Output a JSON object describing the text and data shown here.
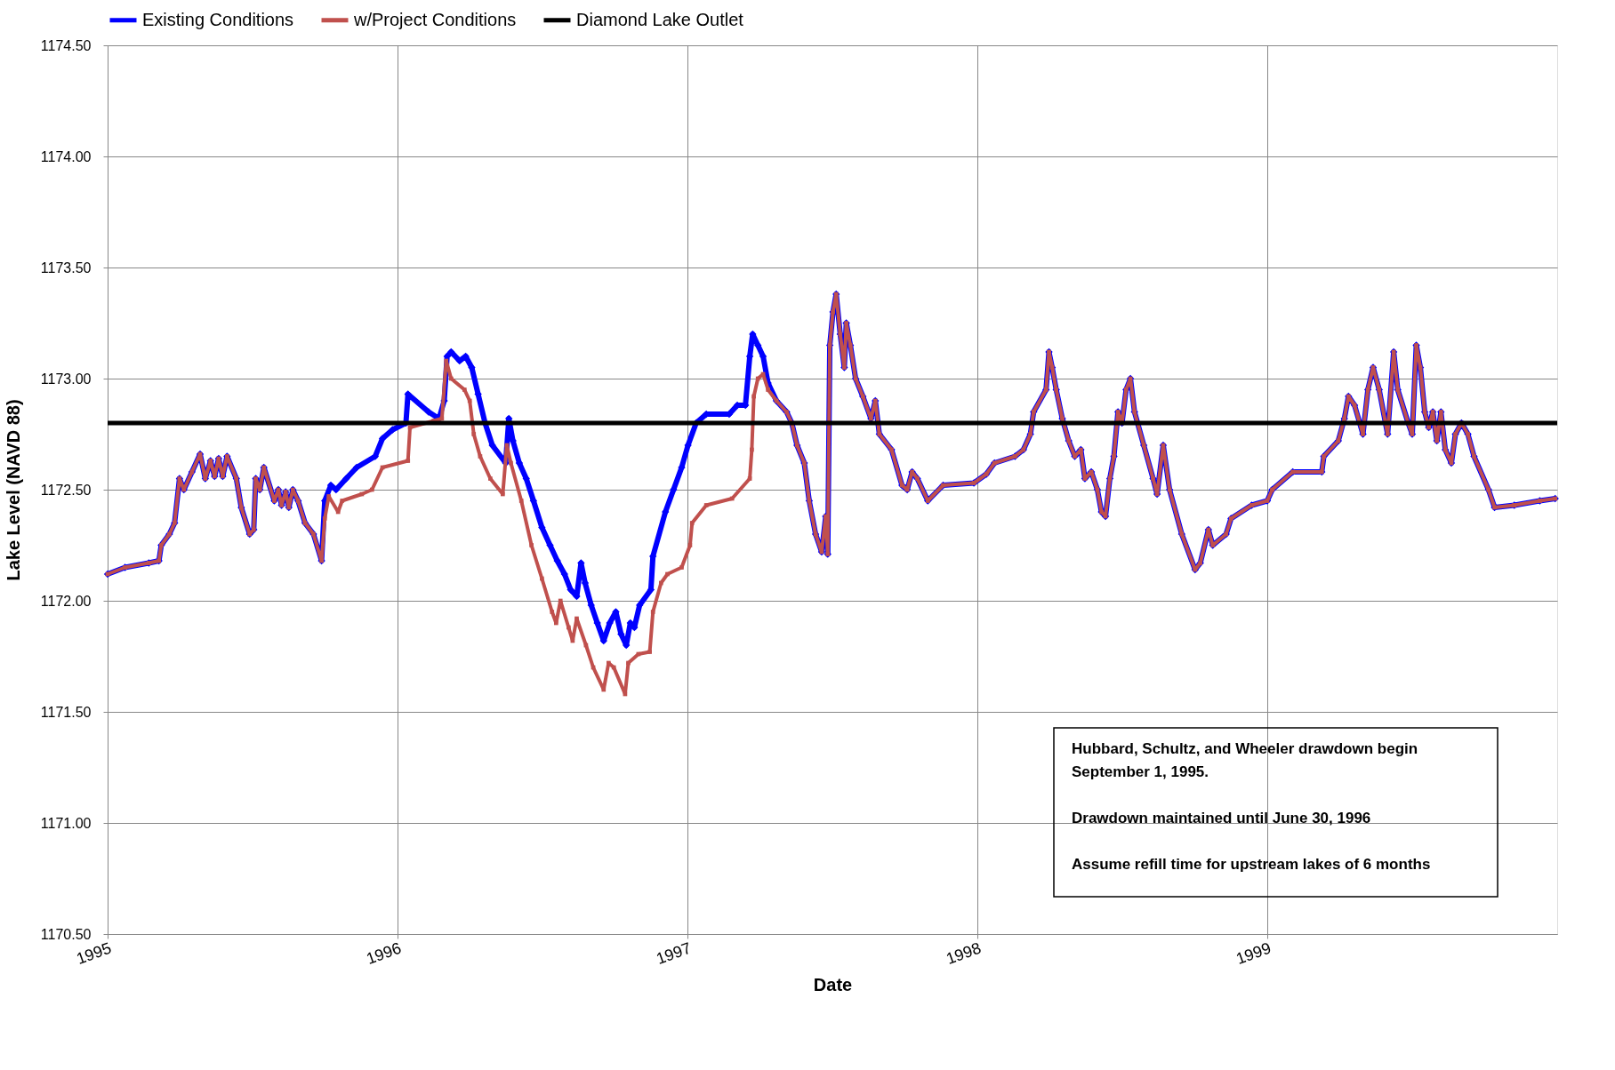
{
  "chart_data": {
    "type": "line",
    "xlabel": "Date",
    "ylabel": "Lake Level (NAVD 88)",
    "xlim": [
      1995,
      2000
    ],
    "xticks": [
      1995,
      1996,
      1997,
      1998,
      1999
    ],
    "ylim": [
      1170.5,
      1174.5
    ],
    "yticks": [
      {
        "value": 1170.5,
        "label": "1170.50"
      },
      {
        "value": 1171,
        "label": "1171.00"
      },
      {
        "value": 1171.5,
        "label": "1171.50"
      },
      {
        "value": 1172,
        "label": "1172.00"
      },
      {
        "value": 1172.5,
        "label": "1172.50"
      },
      {
        "value": 1173,
        "label": "1173.00"
      },
      {
        "value": 1173.5,
        "label": "1173.50"
      },
      {
        "value": 1174,
        "label": "1174.00"
      },
      {
        "value": 1174.5,
        "label": "1174.50"
      }
    ],
    "grid": true,
    "legend": "top",
    "series": [
      {
        "name": "Existing Conditions",
        "color": "#0000ff",
        "marker": "diamond",
        "x": [
          1995.0,
          1995.06,
          1995.142,
          1995.177,
          1995.185,
          1995.213,
          1995.231,
          1995.248,
          1995.263,
          1995.291,
          1995.319,
          1995.337,
          1995.355,
          1995.369,
          1995.383,
          1995.397,
          1995.412,
          1995.444,
          1995.461,
          1995.49,
          1995.504,
          1995.511,
          1995.525,
          1995.539,
          1995.575,
          1995.589,
          1995.6,
          1995.614,
          1995.625,
          1995.639,
          1995.657,
          1995.681,
          1995.71,
          1995.738,
          1995.749,
          1995.77,
          1995.788,
          1995.823,
          1995.859,
          1995.923,
          1995.948,
          1995.983,
          1996.029,
          1996.036,
          1996.107,
          1996.143,
          1996.161,
          1996.171,
          1996.185,
          1996.214,
          1996.235,
          1996.256,
          1996.278,
          1996.302,
          1996.327,
          1996.373,
          1996.384,
          1996.398,
          1996.42,
          1996.444,
          1996.469,
          1996.498,
          1996.526,
          1996.551,
          1996.576,
          1996.597,
          1996.618,
          1996.633,
          1996.647,
          1996.668,
          1996.689,
          1996.711,
          1996.732,
          1996.753,
          1996.771,
          1996.789,
          1996.803,
          1996.817,
          1996.835,
          1996.874,
          1996.881,
          1996.924,
          1996.952,
          1996.98,
          1997.002,
          1997.03,
          1997.065,
          1997.144,
          1997.172,
          1997.2,
          1997.215,
          1997.225,
          1997.243,
          1997.261,
          1997.278,
          1997.307,
          1997.342,
          1997.36,
          1997.378,
          1997.403,
          1997.42,
          1997.442,
          1997.463,
          1997.477,
          1997.484,
          1997.491,
          1997.502,
          1997.513,
          1997.527,
          1997.541,
          1997.548,
          1997.562,
          1997.58,
          1997.605,
          1997.633,
          1997.648,
          1997.662,
          1997.704,
          1997.74,
          1997.758,
          1997.775,
          1997.793,
          1997.829,
          1997.882,
          1997.988,
          1998.031,
          1998.059,
          1998.13,
          1998.159,
          1998.183,
          1998.194,
          1998.237,
          1998.247,
          1998.258,
          1998.272,
          1998.293,
          1998.315,
          1998.336,
          1998.357,
          1998.371,
          1998.393,
          1998.414,
          1998.428,
          1998.442,
          1998.457,
          1998.471,
          1998.485,
          1998.499,
          1998.513,
          1998.528,
          1998.542,
          1998.574,
          1998.606,
          1998.62,
          1998.641,
          1998.663,
          1998.705,
          1998.751,
          1998.769,
          1998.797,
          1998.812,
          1998.858,
          1998.875,
          1998.946,
          1999.0,
          1999.017,
          1999.088,
          1999.188,
          1999.195,
          1999.245,
          1999.266,
          1999.28,
          1999.301,
          1999.33,
          1999.347,
          1999.365,
          1999.386,
          1999.415,
          1999.436,
          1999.45,
          1999.486,
          1999.5,
          1999.514,
          1999.528,
          1999.543,
          1999.557,
          1999.571,
          1999.585,
          1999.599,
          1999.614,
          1999.635,
          1999.649,
          1999.67,
          1999.692,
          1999.713,
          1999.763,
          1999.784,
          1999.852,
          1999.94,
          1999.993
        ],
        "values": [
          1172.12,
          1172.15,
          1172.17,
          1172.18,
          1172.25,
          1172.3,
          1172.35,
          1172.55,
          1172.5,
          1172.58,
          1172.66,
          1172.55,
          1172.63,
          1172.56,
          1172.64,
          1172.56,
          1172.65,
          1172.55,
          1172.42,
          1172.3,
          1172.32,
          1172.55,
          1172.5,
          1172.6,
          1172.45,
          1172.5,
          1172.43,
          1172.49,
          1172.42,
          1172.5,
          1172.45,
          1172.35,
          1172.3,
          1172.18,
          1172.45,
          1172.52,
          1172.5,
          1172.55,
          1172.6,
          1172.65,
          1172.73,
          1172.77,
          1172.8,
          1172.93,
          1172.85,
          1172.82,
          1172.9,
          1173.1,
          1173.12,
          1173.08,
          1173.1,
          1173.05,
          1172.93,
          1172.8,
          1172.7,
          1172.62,
          1172.82,
          1172.72,
          1172.62,
          1172.55,
          1172.45,
          1172.33,
          1172.25,
          1172.18,
          1172.12,
          1172.05,
          1172.02,
          1172.17,
          1172.08,
          1171.98,
          1171.9,
          1171.82,
          1171.9,
          1171.95,
          1171.85,
          1171.8,
          1171.9,
          1171.88,
          1171.98,
          1172.05,
          1172.2,
          1172.4,
          1172.5,
          1172.6,
          1172.7,
          1172.8,
          1172.84,
          1172.84,
          1172.88,
          1172.88,
          1173.1,
          1173.2,
          1173.15,
          1173.1,
          1172.98,
          1172.9,
          1172.85,
          1172.8,
          1172.7,
          1172.62,
          1172.45,
          1172.3,
          1172.22,
          1172.38,
          1172.21,
          1173.15,
          1173.3,
          1173.38,
          1173.2,
          1173.05,
          1173.25,
          1173.15,
          1173.0,
          1172.92,
          1172.82,
          1172.9,
          1172.75,
          1172.68,
          1172.52,
          1172.5,
          1172.58,
          1172.55,
          1172.45,
          1172.52,
          1172.53,
          1172.57,
          1172.62,
          1172.65,
          1172.68,
          1172.75,
          1172.85,
          1172.95,
          1173.12,
          1173.05,
          1172.95,
          1172.82,
          1172.72,
          1172.65,
          1172.68,
          1172.55,
          1172.58,
          1172.5,
          1172.4,
          1172.38,
          1172.55,
          1172.65,
          1172.85,
          1172.8,
          1172.95,
          1173.0,
          1172.85,
          1172.7,
          1172.55,
          1172.48,
          1172.7,
          1172.5,
          1172.3,
          1172.14,
          1172.17,
          1172.32,
          1172.25,
          1172.3,
          1172.37,
          1172.43,
          1172.45,
          1172.5,
          1172.58,
          1172.58,
          1172.65,
          1172.72,
          1172.82,
          1172.92,
          1172.88,
          1172.75,
          1172.95,
          1173.05,
          1172.95,
          1172.75,
          1173.12,
          1172.95,
          1172.8,
          1172.75,
          1173.15,
          1173.05,
          1172.85,
          1172.78,
          1172.85,
          1172.72,
          1172.85,
          1172.68,
          1172.62,
          1172.75,
          1172.8,
          1172.75,
          1172.65,
          1172.5,
          1172.42,
          1172.43,
          1172.45,
          1172.46
        ]
      },
      {
        "name": "w/Project Conditions",
        "color": "#c0504d",
        "marker": "square",
        "x": [
          1995.0,
          1995.06,
          1995.142,
          1995.177,
          1995.185,
          1995.213,
          1995.231,
          1995.248,
          1995.263,
          1995.291,
          1995.319,
          1995.337,
          1995.355,
          1995.369,
          1995.383,
          1995.397,
          1995.412,
          1995.444,
          1995.461,
          1995.49,
          1995.504,
          1995.511,
          1995.525,
          1995.539,
          1995.575,
          1995.589,
          1995.6,
          1995.614,
          1995.625,
          1995.639,
          1995.657,
          1995.681,
          1995.71,
          1995.738,
          1995.749,
          1995.763,
          1995.795,
          1995.809,
          1995.877,
          1995.912,
          1995.948,
          1996.036,
          1996.043,
          1996.125,
          1996.153,
          1996.168,
          1996.185,
          1996.231,
          1996.249,
          1996.263,
          1996.285,
          1996.32,
          1996.363,
          1996.377,
          1996.391,
          1996.427,
          1996.462,
          1996.498,
          1996.533,
          1996.547,
          1996.562,
          1996.59,
          1996.604,
          1996.618,
          1996.65,
          1996.675,
          1996.711,
          1996.728,
          1996.746,
          1996.785,
          1996.796,
          1996.831,
          1996.87,
          1996.881,
          1996.909,
          1996.931,
          1996.98,
          1997.009,
          1997.016,
          1997.065,
          1997.154,
          1997.215,
          1997.222,
          1997.229,
          1997.243,
          1997.261,
          1997.278,
          1997.307,
          1997.342,
          1997.36,
          1997.378,
          1997.403,
          1997.42,
          1997.442,
          1997.463,
          1997.477,
          1997.484,
          1997.491,
          1997.502,
          1997.513,
          1997.527,
          1997.541,
          1997.548,
          1997.562,
          1997.58,
          1997.605,
          1997.633,
          1997.648,
          1997.662,
          1997.704,
          1997.74,
          1997.758,
          1997.775,
          1997.793,
          1997.829,
          1997.882,
          1997.988,
          1998.031,
          1998.059,
          1998.13,
          1998.159,
          1998.183,
          1998.194,
          1998.237,
          1998.247,
          1998.258,
          1998.272,
          1998.293,
          1998.315,
          1998.336,
          1998.357,
          1998.371,
          1998.393,
          1998.414,
          1998.428,
          1998.442,
          1998.457,
          1998.471,
          1998.485,
          1998.499,
          1998.513,
          1998.528,
          1998.542,
          1998.574,
          1998.606,
          1998.62,
          1998.641,
          1998.663,
          1998.705,
          1998.751,
          1998.769,
          1998.797,
          1998.812,
          1998.858,
          1998.875,
          1998.946,
          1999.0,
          1999.017,
          1999.088,
          1999.188,
          1999.195,
          1999.245,
          1999.266,
          1999.28,
          1999.301,
          1999.33,
          1999.347,
          1999.365,
          1999.386,
          1999.415,
          1999.436,
          1999.45,
          1999.486,
          1999.5,
          1999.514,
          1999.528,
          1999.543,
          1999.557,
          1999.571,
          1999.585,
          1999.599,
          1999.614,
          1999.635,
          1999.649,
          1999.67,
          1999.692,
          1999.713,
          1999.763,
          1999.784,
          1999.852,
          1999.94,
          1999.993
        ],
        "values": [
          1172.12,
          1172.15,
          1172.17,
          1172.18,
          1172.25,
          1172.3,
          1172.35,
          1172.55,
          1172.5,
          1172.58,
          1172.66,
          1172.55,
          1172.63,
          1172.56,
          1172.64,
          1172.56,
          1172.65,
          1172.55,
          1172.42,
          1172.3,
          1172.32,
          1172.55,
          1172.5,
          1172.6,
          1172.45,
          1172.5,
          1172.43,
          1172.49,
          1172.42,
          1172.5,
          1172.45,
          1172.35,
          1172.3,
          1172.18,
          1172.37,
          1172.47,
          1172.4,
          1172.45,
          1172.48,
          1172.5,
          1172.6,
          1172.63,
          1172.78,
          1172.81,
          1172.82,
          1173.08,
          1173.0,
          1172.95,
          1172.9,
          1172.75,
          1172.65,
          1172.55,
          1172.48,
          1172.7,
          1172.62,
          1172.45,
          1172.25,
          1172.1,
          1171.95,
          1171.9,
          1172.0,
          1171.88,
          1171.82,
          1171.92,
          1171.8,
          1171.7,
          1171.6,
          1171.72,
          1171.7,
          1171.58,
          1171.72,
          1171.76,
          1171.77,
          1171.95,
          1172.08,
          1172.12,
          1172.15,
          1172.25,
          1172.35,
          1172.43,
          1172.46,
          1172.55,
          1172.68,
          1172.92,
          1173.0,
          1173.02,
          1172.95,
          1172.9,
          1172.85,
          1172.8,
          1172.7,
          1172.62,
          1172.45,
          1172.3,
          1172.22,
          1172.38,
          1172.21,
          1173.15,
          1173.3,
          1173.38,
          1173.2,
          1173.05,
          1173.25,
          1173.15,
          1173.0,
          1172.92,
          1172.82,
          1172.9,
          1172.75,
          1172.68,
          1172.52,
          1172.5,
          1172.58,
          1172.55,
          1172.45,
          1172.52,
          1172.53,
          1172.57,
          1172.62,
          1172.65,
          1172.68,
          1172.75,
          1172.85,
          1172.95,
          1173.12,
          1173.05,
          1172.95,
          1172.82,
          1172.72,
          1172.65,
          1172.68,
          1172.55,
          1172.58,
          1172.5,
          1172.4,
          1172.38,
          1172.55,
          1172.65,
          1172.85,
          1172.8,
          1172.95,
          1173.0,
          1172.85,
          1172.7,
          1172.55,
          1172.48,
          1172.7,
          1172.5,
          1172.3,
          1172.14,
          1172.17,
          1172.32,
          1172.25,
          1172.3,
          1172.37,
          1172.43,
          1172.45,
          1172.5,
          1172.58,
          1172.58,
          1172.65,
          1172.72,
          1172.82,
          1172.92,
          1172.88,
          1172.75,
          1172.95,
          1173.05,
          1172.95,
          1172.75,
          1173.12,
          1172.95,
          1172.8,
          1172.75,
          1173.15,
          1173.05,
          1172.85,
          1172.78,
          1172.85,
          1172.72,
          1172.85,
          1172.68,
          1172.62,
          1172.75,
          1172.8,
          1172.75,
          1172.65,
          1172.5,
          1172.42,
          1172.43,
          1172.45,
          1172.46
        ]
      }
    ],
    "ref_lines": [
      {
        "axis": "y",
        "value": 1172.8,
        "label": "Diamond Lake Outlet",
        "color": "#000000"
      }
    ],
    "annotations": [
      "Hubbard, Schultz, and Wheeler drawdown begin September 1, 1995.",
      "Drawdown maintained until June 30, 1996",
      "Assume refill time for upstream lakes  of 6 months"
    ]
  }
}
